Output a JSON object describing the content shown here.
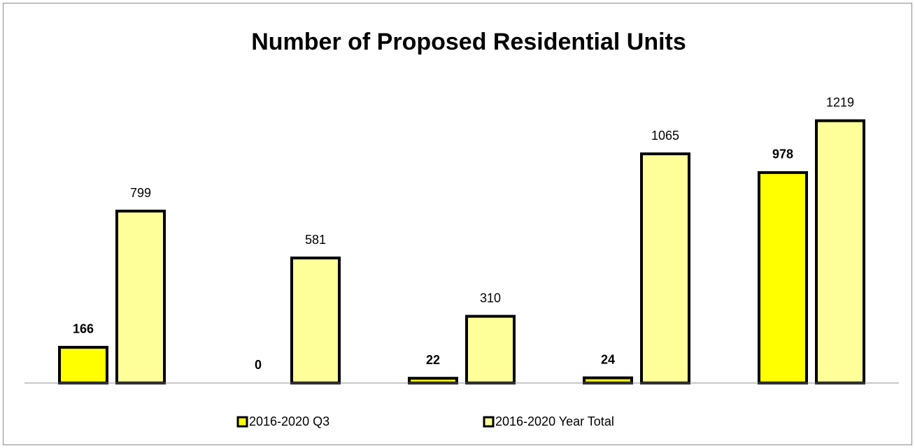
{
  "chart_data": {
    "type": "bar",
    "title": "Number of Proposed Residential Units",
    "categories": [
      null,
      null,
      null,
      null,
      null
    ],
    "series": [
      {
        "name": "2016-2020 Q3",
        "color": "#ffff00",
        "values": [
          166,
          0,
          22,
          24,
          978
        ]
      },
      {
        "name": "2016-2020 Year Total",
        "color": "#ffff99",
        "values": [
          799,
          581,
          310,
          1065,
          1219
        ]
      }
    ],
    "ylim": [
      0,
      1400
    ],
    "legend": "bottom"
  }
}
